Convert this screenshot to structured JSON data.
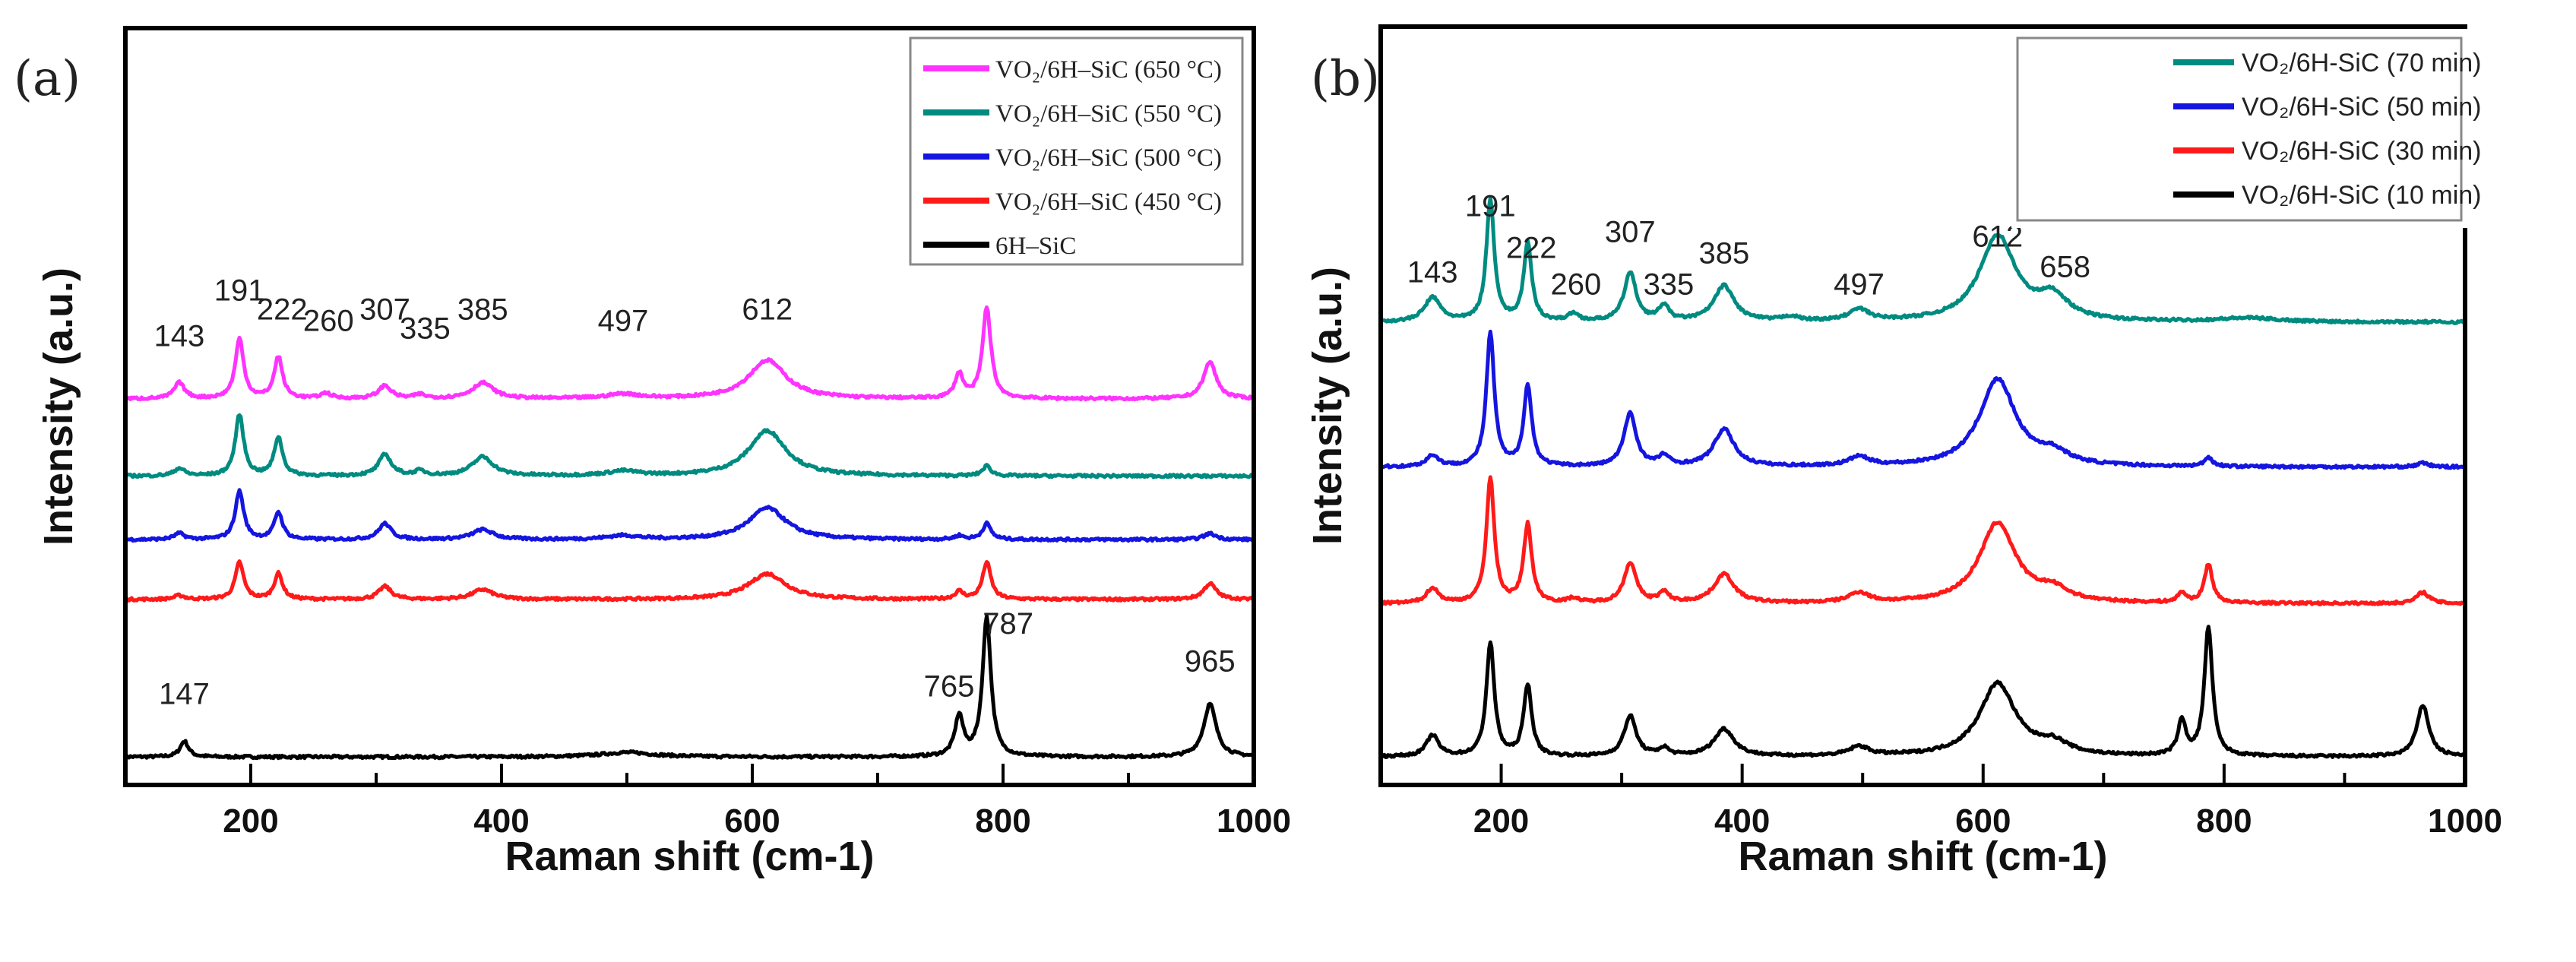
{
  "chart_data": [
    {
      "type": "line",
      "panel_label": "(a)",
      "xlabel": "Raman shift (cm-1)",
      "ylabel": "Intensity (a.u.)",
      "xlim": [
        100,
        1000
      ],
      "ylim": [
        0,
        100
      ],
      "xticks": [
        200,
        400,
        600,
        800,
        1000
      ],
      "grid": false,
      "legend_position": "top-right",
      "series": [
        {
          "name": "VO₂/6H–SiC (650 °C)",
          "color": "#ff33ff",
          "baseline": 51,
          "peaks": [
            [
              143,
              2.1,
              5
            ],
            [
              191,
              7.9,
              4
            ],
            [
              222,
              5.5,
              4
            ],
            [
              260,
              0.7,
              5
            ],
            [
              307,
              1.7,
              6
            ],
            [
              335,
              0.5,
              5
            ],
            [
              385,
              2.1,
              10
            ],
            [
              497,
              0.6,
              15
            ],
            [
              612,
              5.1,
              18
            ],
            [
              765,
              3.2,
              4
            ],
            [
              787,
              12,
              4
            ],
            [
              965,
              4.9,
              6
            ]
          ]
        },
        {
          "name": "VO₂/6H–SiC (550 °C)",
          "color": "#008b80",
          "baseline": 40.8,
          "peaks": [
            [
              143,
              1,
              5
            ],
            [
              191,
              8.1,
              4
            ],
            [
              222,
              5.1,
              4
            ],
            [
              307,
              2.8,
              6
            ],
            [
              335,
              0.6,
              5
            ],
            [
              385,
              2.5,
              10
            ],
            [
              497,
              0.6,
              15
            ],
            [
              612,
              6,
              18
            ],
            [
              787,
              1.3,
              4
            ]
          ]
        },
        {
          "name": "VO₂/6H–SiC (500 °C)",
          "color": "#1515e0",
          "baseline": 32.4,
          "peaks": [
            [
              143,
              0.8,
              5
            ],
            [
              191,
              6.4,
              4
            ],
            [
              222,
              3.6,
              4
            ],
            [
              307,
              2.1,
              6
            ],
            [
              385,
              1.3,
              10
            ],
            [
              497,
              0.5,
              15
            ],
            [
              612,
              4.2,
              18
            ],
            [
              765,
              0.5,
              4
            ],
            [
              787,
              2.1,
              4
            ],
            [
              965,
              0.8,
              6
            ]
          ]
        },
        {
          "name": "VO₂/6H–SiC (450 °C)",
          "color": "#ff1a1a",
          "baseline": 24.5,
          "peaks": [
            [
              143,
              0.5,
              5
            ],
            [
              191,
              4.9,
              4
            ],
            [
              222,
              3.4,
              4
            ],
            [
              307,
              1.7,
              6
            ],
            [
              385,
              1.3,
              10
            ],
            [
              612,
              3.4,
              18
            ],
            [
              765,
              1,
              4
            ],
            [
              787,
              4.9,
              4
            ],
            [
              965,
              2.1,
              6
            ]
          ]
        },
        {
          "name": "6H–SiC",
          "color": "#000000",
          "baseline": 3.7,
          "peaks": [
            [
              147,
              2.1,
              4
            ],
            [
              500,
              0.6,
              25
            ],
            [
              765,
              5.3,
              4
            ],
            [
              787,
              18.5,
              4
            ],
            [
              965,
              7,
              6
            ]
          ]
        }
      ],
      "annotations": [
        {
          "text": "143",
          "x": 143,
          "y": 58
        },
        {
          "text": "191",
          "x": 191,
          "y": 64
        },
        {
          "text": "222",
          "x": 225,
          "y": 61.5
        },
        {
          "text": "260",
          "x": 262,
          "y": 60
        },
        {
          "text": "307",
          "x": 307,
          "y": 61.5
        },
        {
          "text": "335",
          "x": 339,
          "y": 59
        },
        {
          "text": "385",
          "x": 385,
          "y": 61.5
        },
        {
          "text": "497",
          "x": 497,
          "y": 60
        },
        {
          "text": "612",
          "x": 612,
          "y": 61.5
        },
        {
          "text": "147",
          "x": 147,
          "y": 10.7
        },
        {
          "text": "765",
          "x": 757,
          "y": 11.7
        },
        {
          "text": "787",
          "x": 804,
          "y": 20
        },
        {
          "text": "965",
          "x": 965,
          "y": 15
        }
      ]
    },
    {
      "type": "line",
      "panel_label": "(b)",
      "xlabel": "Raman shift (cm-1)",
      "ylabel": "Intensity (a.u.)",
      "xlim": [
        100,
        1000
      ],
      "ylim": [
        0,
        100
      ],
      "xticks": [
        200,
        400,
        600,
        800,
        1000
      ],
      "grid": false,
      "legend_position": "top-right",
      "series": [
        {
          "name": "VO₂/6H-SiC (70 min)",
          "color": "#008b80",
          "baseline": 61,
          "peaks": [
            [
              143,
              3.2,
              8
            ],
            [
              191,
              16,
              4
            ],
            [
              222,
              10.2,
              4
            ],
            [
              260,
              1,
              5
            ],
            [
              307,
              6.4,
              6
            ],
            [
              335,
              2,
              5
            ],
            [
              385,
              4.7,
              10
            ],
            [
              440,
              0.6,
              8
            ],
            [
              497,
              1.5,
              10
            ],
            [
              612,
              11.3,
              18
            ],
            [
              658,
              3,
              15
            ],
            [
              820,
              0.5,
              30
            ]
          ]
        },
        {
          "name": "VO₂/6H-SiC (50 min)",
          "color": "#1515e0",
          "baseline": 41.9,
          "peaks": [
            [
              143,
              1.5,
              6
            ],
            [
              191,
              17.5,
              4
            ],
            [
              222,
              10.6,
              4
            ],
            [
              307,
              7,
              6
            ],
            [
              335,
              1.3,
              5
            ],
            [
              385,
              4.9,
              10
            ],
            [
              497,
              1.2,
              10
            ],
            [
              612,
              11.5,
              18
            ],
            [
              658,
              1.5,
              15
            ],
            [
              787,
              1.2,
              4
            ],
            [
              965,
              0.5,
              6
            ]
          ]
        },
        {
          "name": "VO₂/6H-SiC (30 min)",
          "color": "#ff1a1a",
          "baseline": 23.9,
          "peaks": [
            [
              143,
              2,
              6
            ],
            [
              191,
              16.4,
              4
            ],
            [
              222,
              10.4,
              4
            ],
            [
              260,
              0.6,
              5
            ],
            [
              307,
              5.3,
              6
            ],
            [
              335,
              1.3,
              5
            ],
            [
              385,
              3.8,
              10
            ],
            [
              497,
              1.3,
              10
            ],
            [
              612,
              10.6,
              18
            ],
            [
              658,
              1.5,
              15
            ],
            [
              765,
              1.3,
              4
            ],
            [
              787,
              5.1,
              4
            ],
            [
              965,
              1.5,
              6
            ]
          ]
        },
        {
          "name": "VO₂/6H-SiC (10 min)",
          "color": "#000000",
          "baseline": 3.7,
          "peaks": [
            [
              143,
              2.8,
              6
            ],
            [
              191,
              14.9,
              4
            ],
            [
              222,
              9.4,
              4
            ],
            [
              307,
              5.3,
              6
            ],
            [
              335,
              1,
              5
            ],
            [
              385,
              3.6,
              10
            ],
            [
              497,
              1.2,
              10
            ],
            [
              612,
              9.6,
              18
            ],
            [
              658,
              1.5,
              15
            ],
            [
              765,
              4.5,
              4
            ],
            [
              787,
              17,
              4
            ],
            [
              965,
              6.8,
              6
            ]
          ]
        }
      ],
      "annotations": [
        {
          "text": "143",
          "x": 143,
          "y": 66.3
        },
        {
          "text": "191",
          "x": 191,
          "y": 75
        },
        {
          "text": "222",
          "x": 225,
          "y": 69.5
        },
        {
          "text": "260",
          "x": 262,
          "y": 64.7
        },
        {
          "text": "307",
          "x": 307,
          "y": 71.6
        },
        {
          "text": "335",
          "x": 339,
          "y": 64.7
        },
        {
          "text": "385",
          "x": 385,
          "y": 68.8
        },
        {
          "text": "497",
          "x": 497,
          "y": 64.7
        },
        {
          "text": "612",
          "x": 612,
          "y": 71
        },
        {
          "text": "658",
          "x": 668,
          "y": 67
        }
      ]
    }
  ]
}
